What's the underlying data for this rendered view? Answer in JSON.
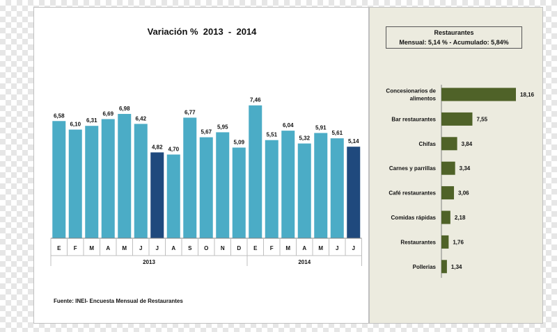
{
  "title": "Variación %  2013  -  2014",
  "source": "Fuente:  INEI- Encuesta  Mensual de Restaurantes",
  "summary": {
    "heading": "Restaurantes",
    "line": "Mensual: 5,14 %  -  Acumulado: 5,84%"
  },
  "chart_data": [
    {
      "type": "bar",
      "title": "Variación %  2013  -  2014",
      "categories": [
        "E",
        "F",
        "M",
        "A",
        "M",
        "J",
        "J",
        "A",
        "S",
        "O",
        "N",
        "D",
        "E",
        "F",
        "M",
        "A",
        "M",
        "J",
        "J"
      ],
      "groups": [
        {
          "label": "2013",
          "count": 12
        },
        {
          "label": "2014",
          "count": 7
        }
      ],
      "values": [
        6.58,
        6.1,
        6.31,
        6.69,
        6.98,
        6.42,
        4.82,
        4.7,
        6.77,
        5.67,
        5.95,
        5.09,
        7.46,
        5.51,
        6.04,
        5.32,
        5.91,
        5.61,
        5.14
      ],
      "labels": [
        "6,58",
        "6,10",
        "6,31",
        "6,69",
        "6,98",
        "6,42",
        "4,82",
        "4,70",
        "6,77",
        "5,67",
        "5,95",
        "5,09",
        "7,46",
        "5,51",
        "6,04",
        "5,32",
        "5,91",
        "5,61",
        "5,14"
      ],
      "highlight": [
        6,
        18
      ],
      "colors": {
        "bar": "#4bacc6",
        "highlight": "#1f497d"
      },
      "ylim": [
        0,
        7.8
      ]
    },
    {
      "type": "bar",
      "orientation": "horizontal",
      "categories": [
        "Concesionarios de alimentos",
        "Bar restaurantes",
        "Chifas",
        "Carnes y parrillas",
        "Café restaurantes",
        "Comidas rápidas",
        "Restaurantes",
        "Pollerias"
      ],
      "category_lines": [
        [
          "Concesionarios de",
          "alimentos"
        ],
        [
          "Bar restaurantes"
        ],
        [
          "Chifas"
        ],
        [
          "Carnes y parrillas"
        ],
        [
          "Café restaurantes"
        ],
        [
          "Comidas rápidas"
        ],
        [
          "Restaurantes"
        ],
        [
          "Pollerias"
        ]
      ],
      "values": [
        18.16,
        7.55,
        3.84,
        3.34,
        3.06,
        2.18,
        1.76,
        1.34
      ],
      "labels": [
        "18,16",
        "7,55",
        "3,84",
        "3,34",
        "3,06",
        "2,18",
        "1,76",
        "1,34"
      ],
      "colors": {
        "bar": "#4f6228"
      },
      "xlim": [
        0,
        18.16
      ]
    }
  ]
}
